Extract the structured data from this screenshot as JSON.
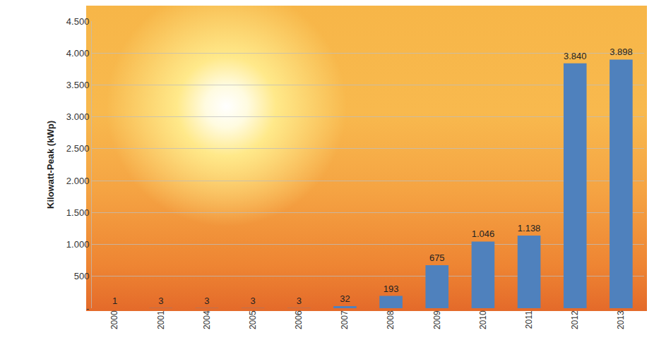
{
  "chart_data": {
    "type": "bar",
    "ylabel": "Kilowatt-Peak (kWp)",
    "categories": [
      "2000",
      "2001",
      "2004",
      "2005",
      "2006",
      "2007",
      "2008",
      "2009",
      "2010",
      "2011",
      "2012",
      "2013"
    ],
    "values": [
      1,
      3,
      3,
      3,
      3,
      32,
      193,
      675,
      1046,
      1138,
      3840,
      3898
    ],
    "value_labels": [
      "1",
      "3",
      "3",
      "3",
      "3",
      "32",
      "193",
      "675",
      "1.046",
      "1.138",
      "3.840",
      "3.898"
    ],
    "color": "#4f81bd",
    "ylim": [
      0,
      4500
    ],
    "yticks": [
      {
        "value": 0,
        "label": "-"
      },
      500,
      {
        "value": 1000,
        "label": "1.000"
      },
      {
        "value": 1500,
        "label": "1.500"
      },
      {
        "value": 2000,
        "label": "2.000"
      },
      {
        "value": 2500,
        "label": "2.500"
      },
      {
        "value": 3000,
        "label": "3.000"
      },
      {
        "value": 3500,
        "label": "3.500"
      },
      {
        "value": 4000,
        "label": "4.000"
      },
      {
        "value": 4500,
        "label": "4.500"
      }
    ],
    "grid": true,
    "data_labels": true
  }
}
